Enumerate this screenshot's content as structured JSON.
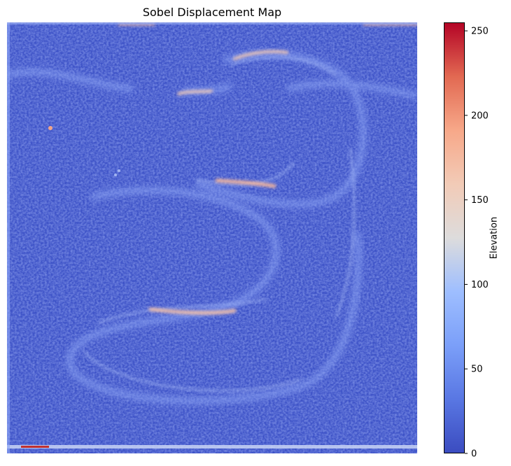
{
  "title": "Sobel Displacement Map",
  "chart_data": {
    "type": "heatmap",
    "title": "Sobel Displacement Map",
    "colormap": "coolwarm",
    "colorbar": {
      "label": "Elevation",
      "range": [
        0,
        255
      ],
      "ticks": [
        0,
        50,
        100,
        150,
        200,
        250
      ]
    },
    "axes_visible": false,
    "features": [
      {
        "name": "background texture",
        "value_approx": 20
      },
      {
        "name": "S-curve edges",
        "value_approx": 90
      },
      {
        "name": "bright edge segments",
        "value_approx": 190
      },
      {
        "name": "bottom border strip",
        "value_approx": 240
      }
    ]
  }
}
